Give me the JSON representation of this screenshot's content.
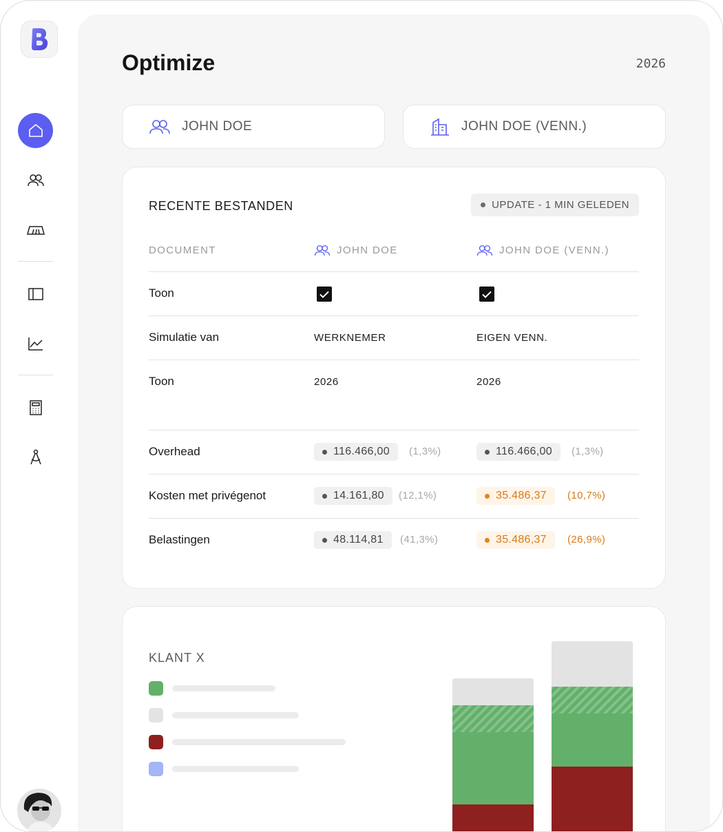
{
  "app": {
    "logo_icon": "b-logo-icon"
  },
  "sidebar": {
    "items": [
      {
        "name": "home",
        "icon": "home-icon",
        "active": true
      },
      {
        "name": "users",
        "icon": "users-icon",
        "active": false
      },
      {
        "name": "ticket",
        "icon": "ticket-icon",
        "active": false
      },
      {
        "name": "panel",
        "icon": "sidebar-panel-icon",
        "active": false
      },
      {
        "name": "chart",
        "icon": "line-chart-icon",
        "active": false
      },
      {
        "name": "calculator",
        "icon": "calculator-icon",
        "active": false
      },
      {
        "name": "compass",
        "icon": "compass-icon",
        "active": false
      }
    ],
    "accent": "#5b5ef0"
  },
  "header": {
    "title": "Optimize",
    "year": "2026"
  },
  "entities": [
    {
      "label": "JOHN DOE",
      "icon": "users-icon"
    },
    {
      "label": "JOHN DOE (VENN.)",
      "icon": "building-icon"
    }
  ],
  "files_card": {
    "title": "RECENTE BESTANDEN",
    "update_badge": "UPDATE - 1 MIN GELEDEN",
    "columns": [
      "DOCUMENT",
      "JOHN DOE",
      "JOHN DOE (VENN.)"
    ],
    "rows_top": [
      {
        "label": "Toon",
        "col1": "checked",
        "col2": "checked"
      },
      {
        "label": "Simulatie van",
        "col1": "WERKNEMER",
        "col2": "EIGEN VENN."
      },
      {
        "label": "Toon",
        "col1": "2026",
        "col2": "2026"
      }
    ],
    "rows_values": [
      {
        "label": "Overhead",
        "col1": {
          "value": "116.466,00",
          "pct": "(1,3%)",
          "tone": "gray"
        },
        "col2": {
          "value": "116.466,00",
          "pct": "(1,3%)",
          "tone": "gray"
        }
      },
      {
        "label": "Kosten met privégenot",
        "col1": {
          "value": "14.161,80",
          "pct": "(12,1%)",
          "tone": "gray"
        },
        "col2": {
          "value": "35.486,37",
          "pct": "(10,7%)",
          "tone": "orange"
        }
      },
      {
        "label": "Belastingen",
        "col1": {
          "value": "48.114,81",
          "pct": "(41,3%)",
          "tone": "gray"
        },
        "col2": {
          "value": "35.486,37",
          "pct": "(26,9%)",
          "tone": "orange"
        }
      }
    ]
  },
  "chart_card": {
    "title": "KLANT X",
    "legend_colors": [
      "#63b06a",
      "#e3e3e3",
      "#8e2020",
      "#a4b4f6"
    ]
  },
  "chart_data": {
    "type": "bar",
    "stacked": true,
    "categories": [
      "",
      ""
    ],
    "series": [
      {
        "color": "#8e2020",
        "values": [
          24,
          38
        ]
      },
      {
        "color": "#63b06a",
        "values": [
          27,
          20
        ]
      },
      {
        "color": "#63b06a",
        "pattern": "hatched",
        "values": [
          10,
          10
        ]
      },
      {
        "color": "#e3e3e3",
        "values": [
          10,
          17
        ]
      }
    ],
    "ylim": [
      0,
      85
    ]
  }
}
